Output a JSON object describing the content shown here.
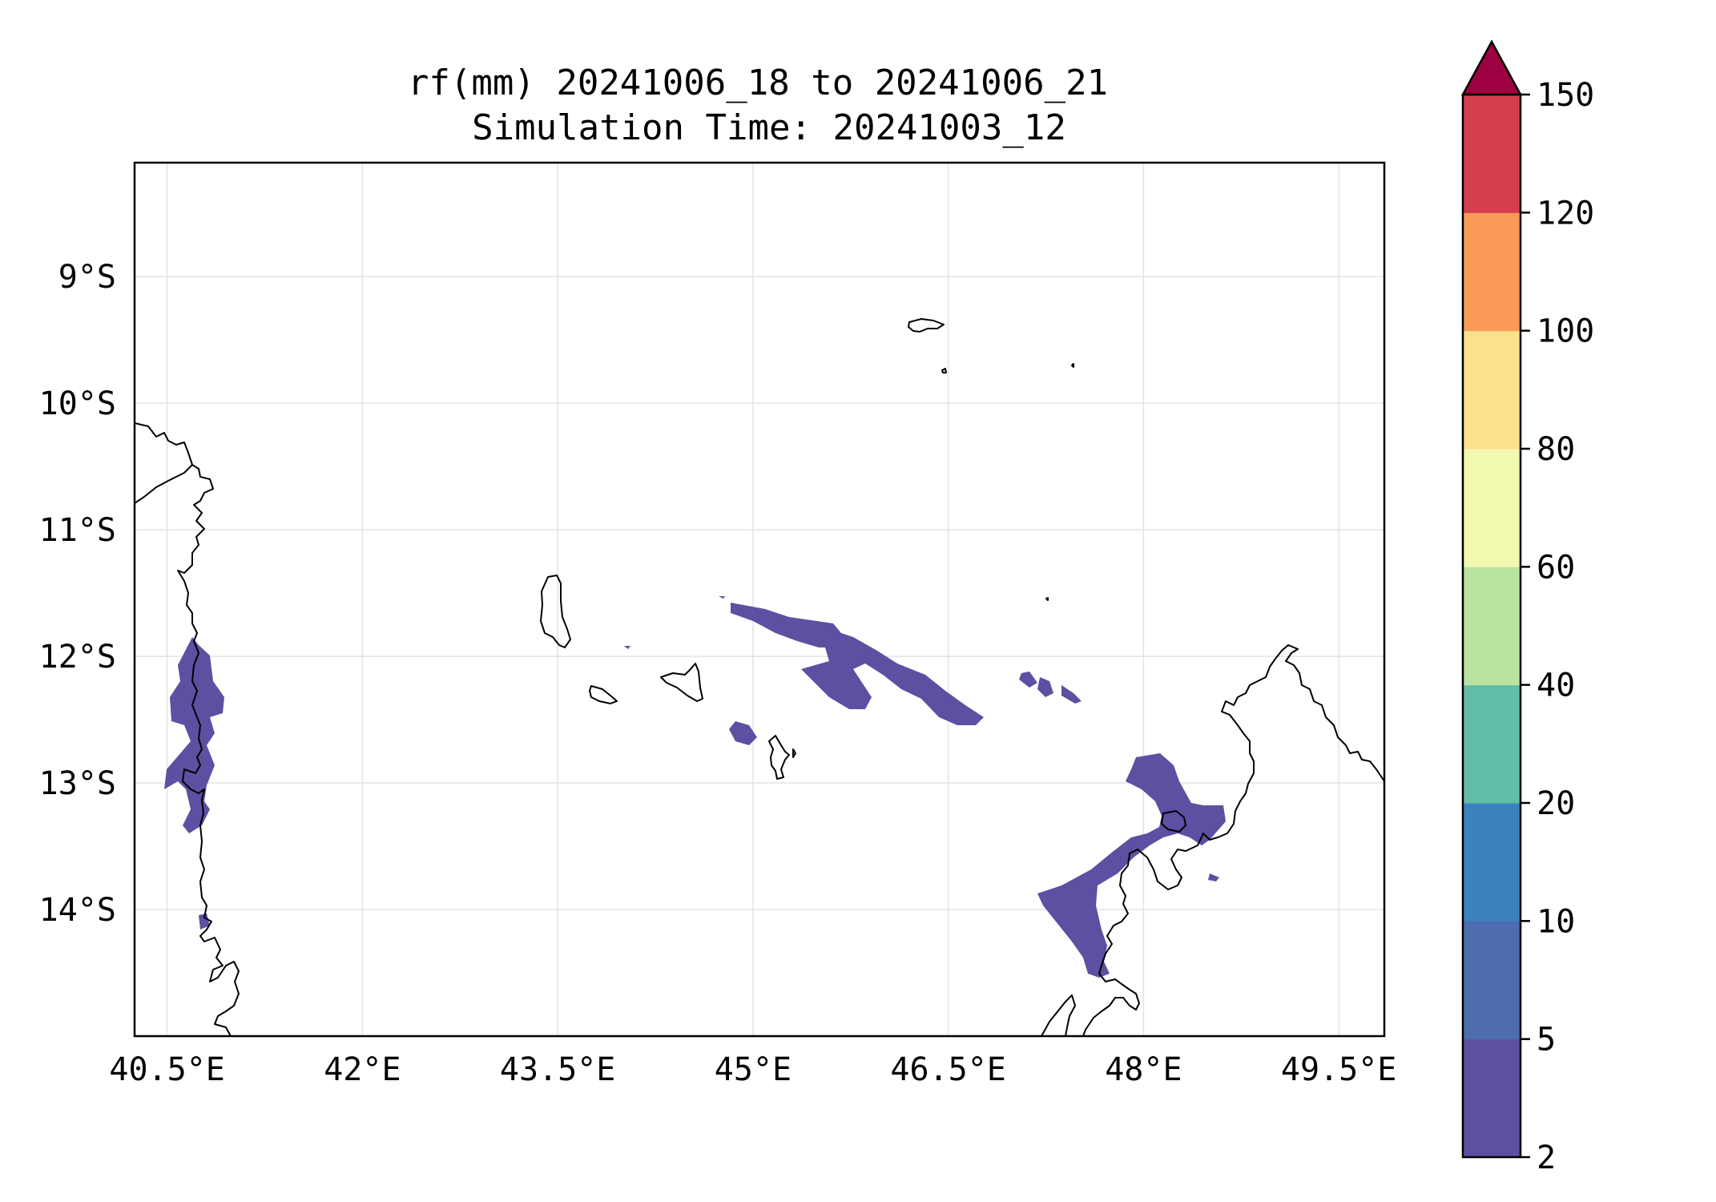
{
  "chart_data": {
    "type": "map",
    "title_line1": "rf(mm) 20241006_18 to 20241006_21",
    "title_line2": "Simulation Time: 20241003_12",
    "lon_range": [
      40.25,
      49.85
    ],
    "lat_range": [
      -15.0,
      -8.1
    ],
    "lon_ticks": [
      40.5,
      42,
      43.5,
      45,
      46.5,
      48,
      49.5
    ],
    "lon_tick_labels": [
      "40.5°E",
      "42°E",
      "43.5°E",
      "45°E",
      "46.5°E",
      "48°E",
      "49.5°E"
    ],
    "lat_ticks": [
      -9,
      -10,
      -11,
      -12,
      -13,
      -14
    ],
    "lat_tick_labels": [
      "9°S",
      "10°S",
      "11°S",
      "12°S",
      "13°S",
      "14°S"
    ],
    "grid": true,
    "colorbar": {
      "levels": [
        2,
        5,
        10,
        20,
        40,
        60,
        80,
        100,
        120,
        150
      ],
      "level_labels": [
        "2",
        "5",
        "10",
        "20",
        "40",
        "60",
        "80",
        "100",
        "120",
        "150"
      ],
      "colors": [
        "#5e4fa2",
        "#4e6cb0",
        "#3a82bb",
        "#62bda7",
        "#b9e3a0",
        "#f2f8b0",
        "#fde08b",
        "#f99a57",
        "#d53e4f"
      ],
      "extend_color": "#9e0142",
      "extend": "max"
    },
    "rain_regions_level": "2-5"
  }
}
